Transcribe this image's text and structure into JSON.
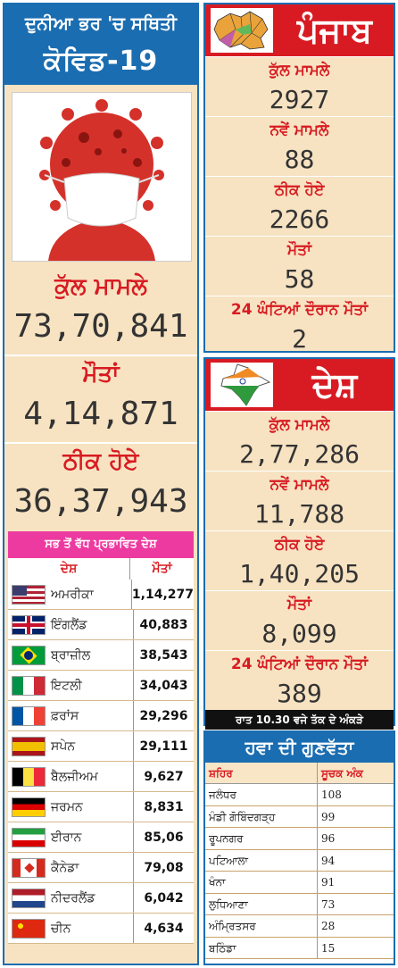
{
  "left": {
    "title_line1": "ਦੁਨੀਆ ਭਰ 'ਚ ਸਥਿਤੀ",
    "title_line2": "ਕੋਵਿਡ-19",
    "total_label": "ਕੁੱਲ ਮਾਮਲੇ",
    "total_value": "73,70,841",
    "deaths_label": "ਮੌਤਾਂ",
    "deaths_value": "4,14,871",
    "recovered_label": "ਠੀਕ ਹੋਏ",
    "recovered_value": "36,37,943",
    "table": {
      "title": "ਸਭ ਤੋਂ ਵੱਧ ਪ੍ਰਭਾਵਿਤ ਦੇਸ਼",
      "col_country": "ਦੇਸ਼",
      "col_deaths": "ਮੌਤਾਂ",
      "rows": [
        {
          "name": "ਅਮਰੀਕਾ",
          "value": "1,14,277",
          "flag": "us"
        },
        {
          "name": "ਇੰਗਲੈਂਡ",
          "value": "40,883",
          "flag": "uk"
        },
        {
          "name": "ਬ੍ਰਾਜ਼ੀਲ",
          "value": "38,543",
          "flag": "br"
        },
        {
          "name": "ਇਟਲੀ",
          "value": "34,043",
          "flag": "it"
        },
        {
          "name": "ਫ਼ਰਾਂਸ",
          "value": "29,296",
          "flag": "fr"
        },
        {
          "name": "ਸਪੇਨ",
          "value": "29,111",
          "flag": "es"
        },
        {
          "name": "ਬੈਲਜੀਅਮ",
          "value": "9,627",
          "flag": "be"
        },
        {
          "name": "ਜਰਮਨ",
          "value": "8,831",
          "flag": "de"
        },
        {
          "name": "ਈਰਾਨ",
          "value": "85,06",
          "flag": "ir"
        },
        {
          "name": "ਕੈਨੇਡਾ",
          "value": "79,08",
          "flag": "ca"
        },
        {
          "name": "ਨੀਦਰਲੈਂਡ",
          "value": "6,042",
          "flag": "nl"
        },
        {
          "name": "ਚੀਨ",
          "value": "4,634",
          "flag": "cn"
        }
      ]
    }
  },
  "punjab": {
    "title": "ਪੰਜਾਬ",
    "blocks": [
      {
        "label": "ਕੁੱਲ ਮਾਮਲੇ",
        "value": "2927"
      },
      {
        "label": "ਨਵੇਂ ਮਾਮਲੇ",
        "value": "88"
      },
      {
        "label": "ਠੀਕ ਹੋਏ",
        "value": "2266"
      },
      {
        "label": "ਮੌਤਾਂ",
        "value": "58"
      },
      {
        "label": "24 ਘੰਟਿਆਂ ਦੌਰਾਨ ਮੌਤਾਂ",
        "value": "2"
      }
    ]
  },
  "india": {
    "title": "ਦੇਸ਼",
    "blocks": [
      {
        "label": "ਕੁੱਲ ਮਾਮਲੇ",
        "value": "2,77,286"
      },
      {
        "label": "ਨਵੇਂ ਮਾਮਲੇ",
        "value": "11,788"
      },
      {
        "label": "ਠੀਕ ਹੋਏ",
        "value": "1,40,205"
      },
      {
        "label": "ਮੌਤਾਂ",
        "value": "8,099"
      },
      {
        "label": "24 ਘੰਟਿਆਂ ਦੌਰਾਨ ਮੌਤਾਂ",
        "value": "389"
      }
    ],
    "note": "ਰਾਤ 10.30 ਵਜੇ ਤੱਕ ਦੇ ਅੰਕੜੇ"
  },
  "aqi": {
    "title": "ਹਵਾ ਦੀ ਗੁਣਵੱਤਾ",
    "col_city": "ਸ਼ਹਿਰ",
    "col_index": "ਸੂਚਕ ਅੰਕ",
    "rows": [
      {
        "city": "ਜਲੰਧਰ",
        "index": "108"
      },
      {
        "city": "ਮੰਡੀ ਗੋਬਿੰਦਗੜ੍ਹ",
        "index": "99"
      },
      {
        "city": "ਰੂਪਨਗਰ",
        "index": "96"
      },
      {
        "city": "ਪਟਿਆਲਾ",
        "index": "94"
      },
      {
        "city": "ਖੰਨਾ",
        "index": "91"
      },
      {
        "city": "ਲੁਧਿਆਣਾ",
        "index": "73"
      },
      {
        "city": "ਅੰਮ੍ਰਿਤਸਰ",
        "index": "28"
      },
      {
        "city": "ਬਠਿੰਡਾ",
        "index": "15"
      }
    ]
  },
  "colors": {
    "brand_blue": "#1b6db1",
    "accent_red": "#d81b22",
    "pink": "#ec3aa0",
    "panel": "#f7e3c2"
  }
}
